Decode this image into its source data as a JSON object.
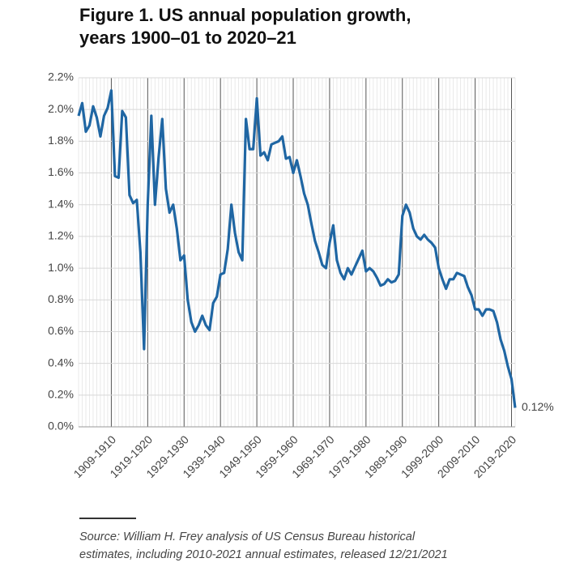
{
  "chart_data": {
    "type": "line",
    "title": [
      "Figure 1. US annual population growth,",
      "years 1900–01 to 2020–21"
    ],
    "source": [
      "Source: William H. Frey analysis of US Census Bureau historical",
      "estimates, including 2010-2021 annual estimates, released 12/21/2021"
    ],
    "categories": [
      null,
      null,
      null,
      null,
      null,
      null,
      null,
      null,
      null,
      "1909-1910",
      null,
      null,
      null,
      null,
      null,
      null,
      null,
      null,
      null,
      "1919-1920",
      null,
      null,
      null,
      null,
      null,
      null,
      null,
      null,
      null,
      "1929-1930",
      null,
      null,
      null,
      null,
      null,
      null,
      null,
      null,
      null,
      "1939-1940",
      null,
      null,
      null,
      null,
      null,
      null,
      null,
      null,
      null,
      "1949-1950",
      null,
      null,
      null,
      null,
      null,
      null,
      null,
      null,
      null,
      "1959-1960",
      null,
      null,
      null,
      null,
      null,
      null,
      null,
      null,
      null,
      "1969-1970",
      null,
      null,
      null,
      null,
      null,
      null,
      null,
      null,
      null,
      "1979-1980",
      null,
      null,
      null,
      null,
      null,
      null,
      null,
      null,
      null,
      "1989-1990",
      null,
      null,
      null,
      null,
      null,
      null,
      null,
      null,
      null,
      "1999-2000",
      null,
      null,
      null,
      null,
      null,
      null,
      null,
      null,
      null,
      "2009-2010",
      null,
      null,
      null,
      null,
      null,
      null,
      null,
      null,
      null,
      "2019-2020",
      null
    ],
    "series": [
      {
        "name": null,
        "color": "#1f66a3",
        "values": [
          1.96,
          2.04,
          1.86,
          1.9,
          2.02,
          1.95,
          1.83,
          1.96,
          2.01,
          2.12,
          1.58,
          1.57,
          1.99,
          1.95,
          1.46,
          1.41,
          1.43,
          1.1,
          0.49,
          1.4,
          1.96,
          1.4,
          1.7,
          1.94,
          1.5,
          1.35,
          1.4,
          1.25,
          1.05,
          1.08,
          0.8,
          0.66,
          0.6,
          0.64,
          0.7,
          0.64,
          0.61,
          0.78,
          0.82,
          0.96,
          0.97,
          1.12,
          1.4,
          1.22,
          1.1,
          1.05,
          1.94,
          1.75,
          1.75,
          2.07,
          1.71,
          1.73,
          1.68,
          1.78,
          1.79,
          1.8,
          1.83,
          1.69,
          1.7,
          1.6,
          1.68,
          1.58,
          1.47,
          1.4,
          1.28,
          1.17,
          1.1,
          1.02,
          1.0,
          1.16,
          1.27,
          1.05,
          0.97,
          0.93,
          1.0,
          0.96,
          1.01,
          1.06,
          1.11,
          0.98,
          1.0,
          0.98,
          0.94,
          0.89,
          0.9,
          0.93,
          0.91,
          0.92,
          0.96,
          1.33,
          1.4,
          1.35,
          1.25,
          1.2,
          1.18,
          1.21,
          1.18,
          1.16,
          1.13,
          1.0,
          0.93,
          0.87,
          0.93,
          0.93,
          0.97,
          0.96,
          0.95,
          0.88,
          0.83,
          0.74,
          0.74,
          0.7,
          0.74,
          0.74,
          0.73,
          0.66,
          0.55,
          0.48,
          0.38,
          0.3,
          0.12
        ],
        "value_labels": [
          null,
          null,
          null,
          null,
          null,
          null,
          null,
          null,
          null,
          null,
          null,
          null,
          null,
          null,
          null,
          null,
          null,
          null,
          null,
          null,
          null,
          null,
          null,
          null,
          null,
          null,
          null,
          null,
          null,
          null,
          null,
          null,
          null,
          null,
          null,
          null,
          null,
          null,
          null,
          null,
          null,
          null,
          null,
          null,
          null,
          null,
          null,
          null,
          null,
          null,
          null,
          null,
          null,
          null,
          null,
          null,
          null,
          null,
          null,
          null,
          null,
          null,
          null,
          null,
          null,
          null,
          null,
          null,
          null,
          null,
          null,
          null,
          null,
          null,
          null,
          null,
          null,
          null,
          null,
          null,
          null,
          null,
          null,
          null,
          null,
          null,
          null,
          null,
          null,
          null,
          null,
          null,
          null,
          null,
          null,
          null,
          null,
          null,
          null,
          null,
          null,
          null,
          null,
          null,
          null,
          null,
          null,
          null,
          null,
          null,
          null,
          null,
          null,
          null,
          null,
          null,
          null,
          null,
          null,
          null,
          "0.12%"
        ]
      }
    ],
    "ylim": [
      0,
      2.2
    ],
    "yticks": [
      {
        "value": 0,
        "label": "0.0%"
      },
      {
        "value": 0.2,
        "label": "0.2%"
      },
      {
        "value": 0.4,
        "label": "0.4%"
      },
      {
        "value": 0.6,
        "label": "0.6%"
      },
      {
        "value": 0.8,
        "label": "0.8%"
      },
      {
        "value": 1.0,
        "label": "1.0%"
      },
      {
        "value": 1.2,
        "label": "1.2%"
      },
      {
        "value": 1.4,
        "label": "1.4%"
      },
      {
        "value": 1.6,
        "label": "1.6%"
      },
      {
        "value": 1.8,
        "label": "1.8%"
      },
      {
        "value": 2.0,
        "label": "2.0%"
      },
      {
        "value": 2.2,
        "label": "2.2%"
      }
    ],
    "grid": true
  }
}
